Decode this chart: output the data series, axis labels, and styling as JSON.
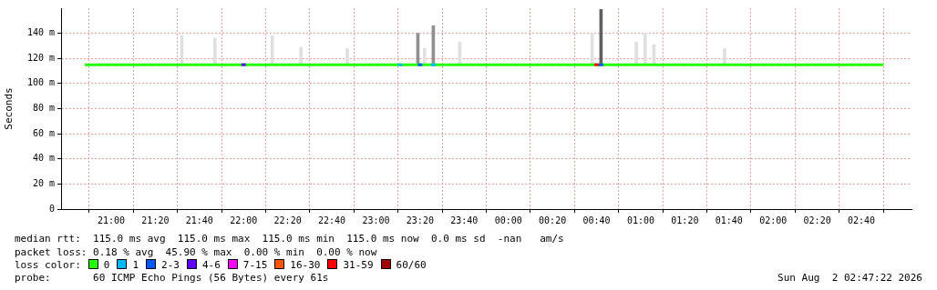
{
  "chart_data": {
    "type": "line",
    "ylabel": "Seconds",
    "legend_title": "loss color:",
    "legend": "bottom",
    "grid": true,
    "marker": "none",
    "xlim": [
      "2026-08-01T20:48",
      "2026-08-02T02:52"
    ],
    "ylim": [
      0,
      160
    ],
    "xticks": [
      {
        "value": "2026-08-01T21:00",
        "label": "21:00"
      },
      {
        "value": "2026-08-01T21:20",
        "label": "21:20"
      },
      {
        "value": "2026-08-01T21:40",
        "label": "21:40"
      },
      {
        "value": "2026-08-01T22:00",
        "label": "22:00"
      },
      {
        "value": "2026-08-01T22:20",
        "label": "22:20"
      },
      {
        "value": "2026-08-01T22:40",
        "label": "22:40"
      },
      {
        "value": "2026-08-01T23:00",
        "label": "23:00"
      },
      {
        "value": "2026-08-01T23:20",
        "label": "23:20"
      },
      {
        "value": "2026-08-01T23:40",
        "label": "23:40"
      },
      {
        "value": "2026-08-02T00:00",
        "label": "00:00"
      },
      {
        "value": "2026-08-02T00:20",
        "label": "00:20"
      },
      {
        "value": "2026-08-02T00:40",
        "label": "00:40"
      },
      {
        "value": "2026-08-02T01:00",
        "label": "01:00"
      },
      {
        "value": "2026-08-02T01:20",
        "label": "01:20"
      },
      {
        "value": "2026-08-02T01:40",
        "label": "01:40"
      },
      {
        "value": "2026-08-02T02:00",
        "label": "02:00"
      },
      {
        "value": "2026-08-02T02:20",
        "label": "02:20"
      },
      {
        "value": "2026-08-02T02:40",
        "label": "02:40"
      }
    ],
    "yticks": [
      0,
      {
        "value": 20,
        "label": "20 m"
      },
      {
        "value": 40,
        "label": "40 m"
      },
      {
        "value": 60,
        "label": "60 m"
      },
      {
        "value": 80,
        "label": "80 m"
      },
      {
        "value": 100,
        "label": "100 m"
      },
      {
        "value": 120,
        "label": "120 m"
      },
      {
        "value": 140,
        "label": "140 m"
      }
    ],
    "series": [
      {
        "type": "bar",
        "color": "#e0e0e0",
        "x": [
          "2026-08-01T21:32",
          "2026-08-01T21:47",
          "2026-08-01T22:13",
          "2026-08-01T22:26",
          "2026-08-01T22:47",
          "2026-08-01T23:19",
          "2026-08-01T23:22",
          "2026-08-01T23:26",
          "2026-08-01T23:38",
          "2026-08-02T00:38",
          "2026-08-02T00:42",
          "2026-08-02T00:58",
          "2026-08-02T01:02",
          "2026-08-02T01:06",
          "2026-08-02T01:38"
        ],
        "base": [
          115,
          115,
          115,
          115,
          115,
          115,
          115,
          115,
          115,
          115,
          115,
          115,
          115,
          115,
          115
        ],
        "values": [
          23,
          21,
          23,
          14,
          13,
          25,
          13,
          31,
          18,
          25,
          44,
          18,
          25,
          16,
          13
        ],
        "colors": [
          "#e0e0e0",
          "#e0e0e0",
          "#e0e0e0",
          "#e0e0e0",
          "#e0e0e0",
          "#909090",
          "#e0e0e0",
          "#909090",
          "#e0e0e0",
          "#e0e0e0",
          "#606060",
          "#e0e0e0",
          "#e0e0e0",
          "#e0e0e0",
          "#e0e0e0"
        ]
      },
      {
        "name": "0",
        "color": "#26ff00",
        "x": [
          "2026-08-01T20:48",
          "2026-08-01T21:18",
          "2026-08-01T21:48",
          "2026-08-01T22:18",
          "2026-08-01T22:48",
          "2026-08-01T23:18",
          "2026-08-01T23:48",
          "2026-08-02T00:18",
          "2026-08-02T00:48",
          "2026-08-02T01:18",
          "2026-08-02T01:48",
          "2026-08-02T02:18",
          "2026-08-02T02:50"
        ],
        "values": [
          115,
          115,
          115,
          115,
          115,
          115,
          115,
          115,
          115,
          115,
          115,
          115,
          115
        ]
      },
      {
        "name": "1",
        "color": "#00b8ff",
        "x": [
          "2026-08-01T23:10",
          "2026-08-01T23:12",
          "2026-08-01T23:18",
          "2026-08-01T23:25",
          "2026-08-01T23:27"
        ],
        "values": [
          115,
          115,
          null,
          115,
          115
        ]
      },
      {
        "name": "2-3",
        "color": "#0059ff",
        "x": [
          "2026-08-01T23:19",
          "2026-08-01T23:21",
          "2026-08-02T00:00",
          "2026-08-02T00:41",
          "2026-08-02T00:43"
        ],
        "values": [
          115,
          115,
          null,
          115,
          115
        ]
      },
      {
        "name": "4-6",
        "color": "#5e00ff",
        "x": [
          "2026-08-01T21:59",
          "2026-08-01T22:01"
        ],
        "values": [
          115,
          115
        ]
      },
      {
        "name": "7-15",
        "color": "#ff00fe"
      },
      {
        "name": "16-30",
        "color": "#ff5500"
      },
      {
        "name": "31-59",
        "color": "#ff0000",
        "x": [
          "2026-08-02T00:39",
          "2026-08-02T00:41"
        ],
        "values": [
          115,
          115
        ]
      },
      {
        "name": "60/60",
        "color": "#a10000"
      }
    ],
    "annotations": [
      "median rtt:  115.0 ms avg  115.0 ms max  115.0 ms min  115.0 ms now  0.0 ms sd  -nan   am/s",
      "packet loss: 0.18 % avg  45.90 % max  0.00 % min  0.00 % now",
      "probe:       60 ICMP Echo Pings (56 Bytes) every 61s",
      "Sun Aug  2 02:47:22 2026"
    ]
  }
}
